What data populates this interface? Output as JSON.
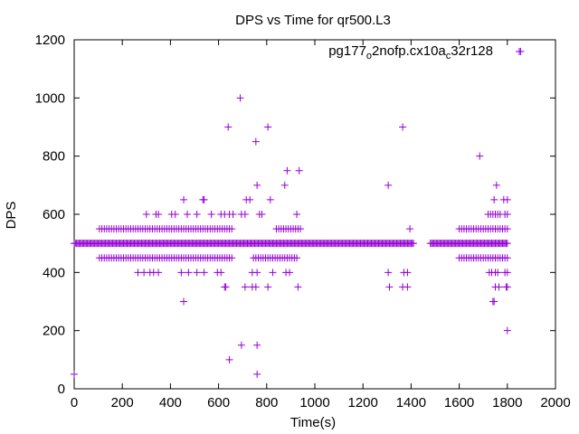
{
  "chart_data": {
    "type": "scatter",
    "title": "DPS vs Time for qr500.L3",
    "xlabel": "Time(s)",
    "ylabel": "DPS",
    "xlim": [
      0,
      2000
    ],
    "ylim": [
      0,
      1200
    ],
    "xticks": [
      "0",
      "200",
      "400",
      "600",
      "800",
      "1000",
      "1200",
      "1400",
      "1600",
      "1800",
      "2000"
    ],
    "yticks": [
      "0",
      "200",
      "400",
      "600",
      "800",
      "1000",
      "1200"
    ],
    "grid": false,
    "legend_position": "top-right",
    "series": [
      {
        "name_parts": {
          "a": "pg177",
          "b": "o",
          "c": "2nofp.cx10a",
          "d": "c",
          "e": "32r128"
        },
        "color": "#9400d3",
        "marker": "plus",
        "baseline": {
          "y": 500,
          "x_ranges": [
            [
              0,
              1410
            ],
            [
              1480,
              1800
            ]
          ],
          "step": 5
        },
        "bands": [
          {
            "y": 550,
            "x_ranges": [
              [
                105,
                660
              ],
              [
                840,
                940
              ],
              [
                1600,
                1800
              ]
            ],
            "step": 10
          },
          {
            "y": 450,
            "x_ranges": [
              [
                105,
                660
              ],
              [
                745,
                930
              ],
              [
                1600,
                1800
              ]
            ],
            "step": 10
          }
        ],
        "points": [
          [
            0,
            50
          ],
          [
            455,
            300
          ],
          [
            645,
            100
          ],
          [
            695,
            150
          ],
          [
            760,
            150
          ],
          [
            760,
            50
          ],
          [
            1800,
            200
          ],
          [
            690,
            1000
          ],
          [
            1855,
            1160
          ],
          [
            640,
            900
          ],
          [
            805,
            900
          ],
          [
            1365,
            900
          ],
          [
            755,
            850
          ],
          [
            1685,
            800
          ],
          [
            885,
            750
          ],
          [
            935,
            750
          ],
          [
            760,
            700
          ],
          [
            875,
            700
          ],
          [
            1305,
            700
          ],
          [
            1755,
            700
          ],
          [
            455,
            650
          ],
          [
            535,
            650
          ],
          [
            540,
            650
          ],
          [
            715,
            650
          ],
          [
            730,
            650
          ],
          [
            815,
            650
          ],
          [
            1745,
            650
          ],
          [
            1785,
            650
          ],
          [
            1800,
            650
          ],
          [
            300,
            600
          ],
          [
            340,
            600
          ],
          [
            350,
            600
          ],
          [
            405,
            600
          ],
          [
            420,
            600
          ],
          [
            470,
            600
          ],
          [
            510,
            600
          ],
          [
            570,
            600
          ],
          [
            610,
            600
          ],
          [
            625,
            600
          ],
          [
            645,
            600
          ],
          [
            660,
            600
          ],
          [
            695,
            600
          ],
          [
            710,
            600
          ],
          [
            770,
            600
          ],
          [
            780,
            600
          ],
          [
            925,
            600
          ],
          [
            1720,
            600
          ],
          [
            1730,
            600
          ],
          [
            1740,
            600
          ],
          [
            1750,
            600
          ],
          [
            1760,
            600
          ],
          [
            1770,
            600
          ],
          [
            1790,
            600
          ],
          [
            1800,
            600
          ],
          [
            1395,
            550
          ],
          [
            265,
            400
          ],
          [
            290,
            400
          ],
          [
            315,
            400
          ],
          [
            330,
            400
          ],
          [
            350,
            400
          ],
          [
            445,
            400
          ],
          [
            475,
            400
          ],
          [
            510,
            400
          ],
          [
            540,
            400
          ],
          [
            595,
            400
          ],
          [
            610,
            400
          ],
          [
            740,
            400
          ],
          [
            760,
            400
          ],
          [
            825,
            400
          ],
          [
            880,
            400
          ],
          [
            895,
            400
          ],
          [
            1305,
            400
          ],
          [
            1370,
            400
          ],
          [
            1385,
            400
          ],
          [
            1725,
            400
          ],
          [
            1735,
            400
          ],
          [
            1750,
            400
          ],
          [
            1760,
            400
          ],
          [
            1790,
            400
          ],
          [
            1800,
            400
          ],
          [
            625,
            350
          ],
          [
            630,
            350
          ],
          [
            710,
            350
          ],
          [
            740,
            350
          ],
          [
            755,
            350
          ],
          [
            805,
            350
          ],
          [
            930,
            350
          ],
          [
            1310,
            350
          ],
          [
            1365,
            350
          ],
          [
            1385,
            350
          ],
          [
            1750,
            350
          ],
          [
            1765,
            350
          ],
          [
            1795,
            350
          ],
          [
            1800,
            350
          ],
          [
            1740,
            300
          ],
          [
            1745,
            300
          ]
        ]
      }
    ]
  }
}
